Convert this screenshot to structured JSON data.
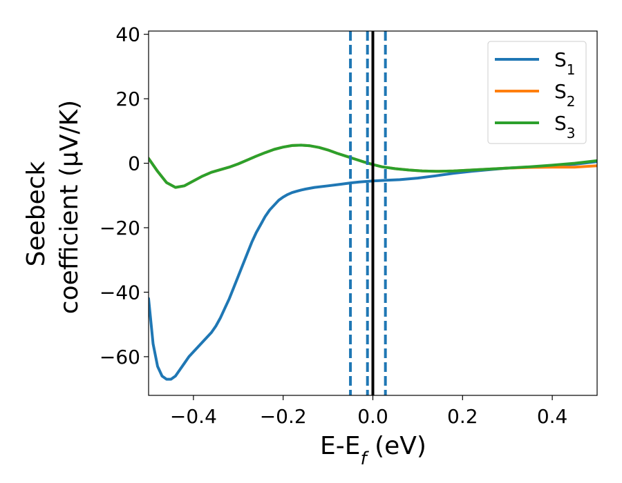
{
  "chart_data": {
    "type": "line",
    "xlabel": {
      "main": "E-E",
      "sub": "f",
      "suffix": " (eV)"
    },
    "ylabel": {
      "line1": "Seebeck",
      "line2": "coefficient  (μV/K)"
    },
    "xlim": [
      -0.5,
      0.5
    ],
    "ylim": [
      -72,
      41
    ],
    "x_ticks": [
      -0.4,
      -0.2,
      0.0,
      0.2,
      0.4
    ],
    "x_tick_labels": [
      "−0.4",
      "−0.2",
      "0.0",
      "0.2",
      "0.4"
    ],
    "y_ticks": [
      -60,
      -40,
      -20,
      0,
      20,
      40
    ],
    "y_tick_labels": [
      "−60",
      "−40",
      "−20",
      "0",
      "20",
      "40"
    ],
    "legend_position": "top-right",
    "series": [
      {
        "name": "S",
        "sub": "1",
        "color": "#1f77b4",
        "points": [
          [
            -0.5,
            -42
          ],
          [
            -0.49,
            -56
          ],
          [
            -0.48,
            -63
          ],
          [
            -0.47,
            -66
          ],
          [
            -0.46,
            -67
          ],
          [
            -0.45,
            -67
          ],
          [
            -0.44,
            -66
          ],
          [
            -0.43,
            -64
          ],
          [
            -0.42,
            -62
          ],
          [
            -0.41,
            -60
          ],
          [
            -0.4,
            -58.5
          ],
          [
            -0.39,
            -57
          ],
          [
            -0.38,
            -55.5
          ],
          [
            -0.37,
            -54
          ],
          [
            -0.36,
            -52.5
          ],
          [
            -0.35,
            -50.5
          ],
          [
            -0.34,
            -48
          ],
          [
            -0.33,
            -45
          ],
          [
            -0.32,
            -42
          ],
          [
            -0.31,
            -38.5
          ],
          [
            -0.3,
            -35
          ],
          [
            -0.29,
            -31.5
          ],
          [
            -0.28,
            -28
          ],
          [
            -0.27,
            -24.5
          ],
          [
            -0.26,
            -21.5
          ],
          [
            -0.25,
            -19
          ],
          [
            -0.24,
            -16.5
          ],
          [
            -0.23,
            -14.5
          ],
          [
            -0.22,
            -13
          ],
          [
            -0.21,
            -11.5
          ],
          [
            -0.2,
            -10.5
          ],
          [
            -0.19,
            -9.7
          ],
          [
            -0.18,
            -9.1
          ],
          [
            -0.17,
            -8.7
          ],
          [
            -0.16,
            -8.3
          ],
          [
            -0.15,
            -8
          ],
          [
            -0.13,
            -7.5
          ],
          [
            -0.1,
            -7
          ],
          [
            -0.07,
            -6.5
          ],
          [
            -0.05,
            -6.1
          ],
          [
            -0.03,
            -5.8
          ],
          [
            0.0,
            -5.5
          ],
          [
            0.03,
            -5.3
          ],
          [
            0.06,
            -5.1
          ],
          [
            0.1,
            -4.6
          ],
          [
            0.14,
            -3.9
          ],
          [
            0.18,
            -3.1
          ],
          [
            0.22,
            -2.5
          ],
          [
            0.26,
            -2
          ],
          [
            0.3,
            -1.5
          ],
          [
            0.35,
            -1.2
          ],
          [
            0.4,
            -0.8
          ],
          [
            0.45,
            -0.3
          ],
          [
            0.5,
            0.5
          ]
        ]
      },
      {
        "name": "S",
        "sub": "2",
        "color": "#ff7f0e",
        "points": [
          [
            -0.5,
            1.5
          ],
          [
            -0.48,
            -2.5
          ],
          [
            -0.46,
            -6
          ],
          [
            -0.44,
            -7.5
          ],
          [
            -0.42,
            -7
          ],
          [
            -0.4,
            -5.5
          ],
          [
            -0.38,
            -4
          ],
          [
            -0.36,
            -2.8
          ],
          [
            -0.34,
            -2
          ],
          [
            -0.32,
            -1.2
          ],
          [
            -0.3,
            -0.2
          ],
          [
            -0.28,
            1
          ],
          [
            -0.26,
            2.2
          ],
          [
            -0.24,
            3.3
          ],
          [
            -0.22,
            4.3
          ],
          [
            -0.2,
            5
          ],
          [
            -0.18,
            5.5
          ],
          [
            -0.16,
            5.6
          ],
          [
            -0.14,
            5.4
          ],
          [
            -0.12,
            4.9
          ],
          [
            -0.1,
            4.1
          ],
          [
            -0.08,
            3.1
          ],
          [
            -0.06,
            2.2
          ],
          [
            -0.04,
            1.3
          ],
          [
            -0.02,
            0.4
          ],
          [
            0.0,
            -0.4
          ],
          [
            0.02,
            -1.1
          ],
          [
            0.05,
            -1.7
          ],
          [
            0.08,
            -2.1
          ],
          [
            0.11,
            -2.4
          ],
          [
            0.14,
            -2.5
          ],
          [
            0.18,
            -2.4
          ],
          [
            0.22,
            -2.1
          ],
          [
            0.26,
            -1.8
          ],
          [
            0.3,
            -1.5
          ],
          [
            0.35,
            -1.3
          ],
          [
            0.4,
            -1.2
          ],
          [
            0.45,
            -1.2
          ],
          [
            0.5,
            -0.8
          ]
        ]
      },
      {
        "name": "S",
        "sub": "3",
        "color": "#2ca02c",
        "points": [
          [
            -0.5,
            1.5
          ],
          [
            -0.48,
            -2.5
          ],
          [
            -0.46,
            -6
          ],
          [
            -0.44,
            -7.5
          ],
          [
            -0.42,
            -7
          ],
          [
            -0.4,
            -5.5
          ],
          [
            -0.38,
            -4
          ],
          [
            -0.36,
            -2.8
          ],
          [
            -0.34,
            -2
          ],
          [
            -0.32,
            -1.2
          ],
          [
            -0.3,
            -0.2
          ],
          [
            -0.28,
            1
          ],
          [
            -0.26,
            2.2
          ],
          [
            -0.24,
            3.3
          ],
          [
            -0.22,
            4.3
          ],
          [
            -0.2,
            5
          ],
          [
            -0.18,
            5.5
          ],
          [
            -0.16,
            5.6
          ],
          [
            -0.14,
            5.4
          ],
          [
            -0.12,
            4.9
          ],
          [
            -0.1,
            4.1
          ],
          [
            -0.08,
            3.1
          ],
          [
            -0.06,
            2.2
          ],
          [
            -0.04,
            1.3
          ],
          [
            -0.02,
            0.4
          ],
          [
            0.0,
            -0.4
          ],
          [
            0.02,
            -1.1
          ],
          [
            0.05,
            -1.7
          ],
          [
            0.08,
            -2.1
          ],
          [
            0.11,
            -2.4
          ],
          [
            0.14,
            -2.5
          ],
          [
            0.18,
            -2.4
          ],
          [
            0.22,
            -2.1
          ],
          [
            0.26,
            -1.8
          ],
          [
            0.3,
            -1.5
          ],
          [
            0.35,
            -1.1
          ],
          [
            0.4,
            -0.6
          ],
          [
            0.45,
            0
          ],
          [
            0.5,
            0.8
          ]
        ]
      }
    ],
    "vlines": [
      {
        "x": -0.05,
        "style": "dashed",
        "color": "#1f77b4"
      },
      {
        "x": -0.012,
        "style": "dashed",
        "color": "#1f77b4"
      },
      {
        "x": 0.028,
        "style": "dashed",
        "color": "#1f77b4"
      },
      {
        "x": 0.0,
        "style": "solid",
        "color": "#000000"
      }
    ]
  }
}
